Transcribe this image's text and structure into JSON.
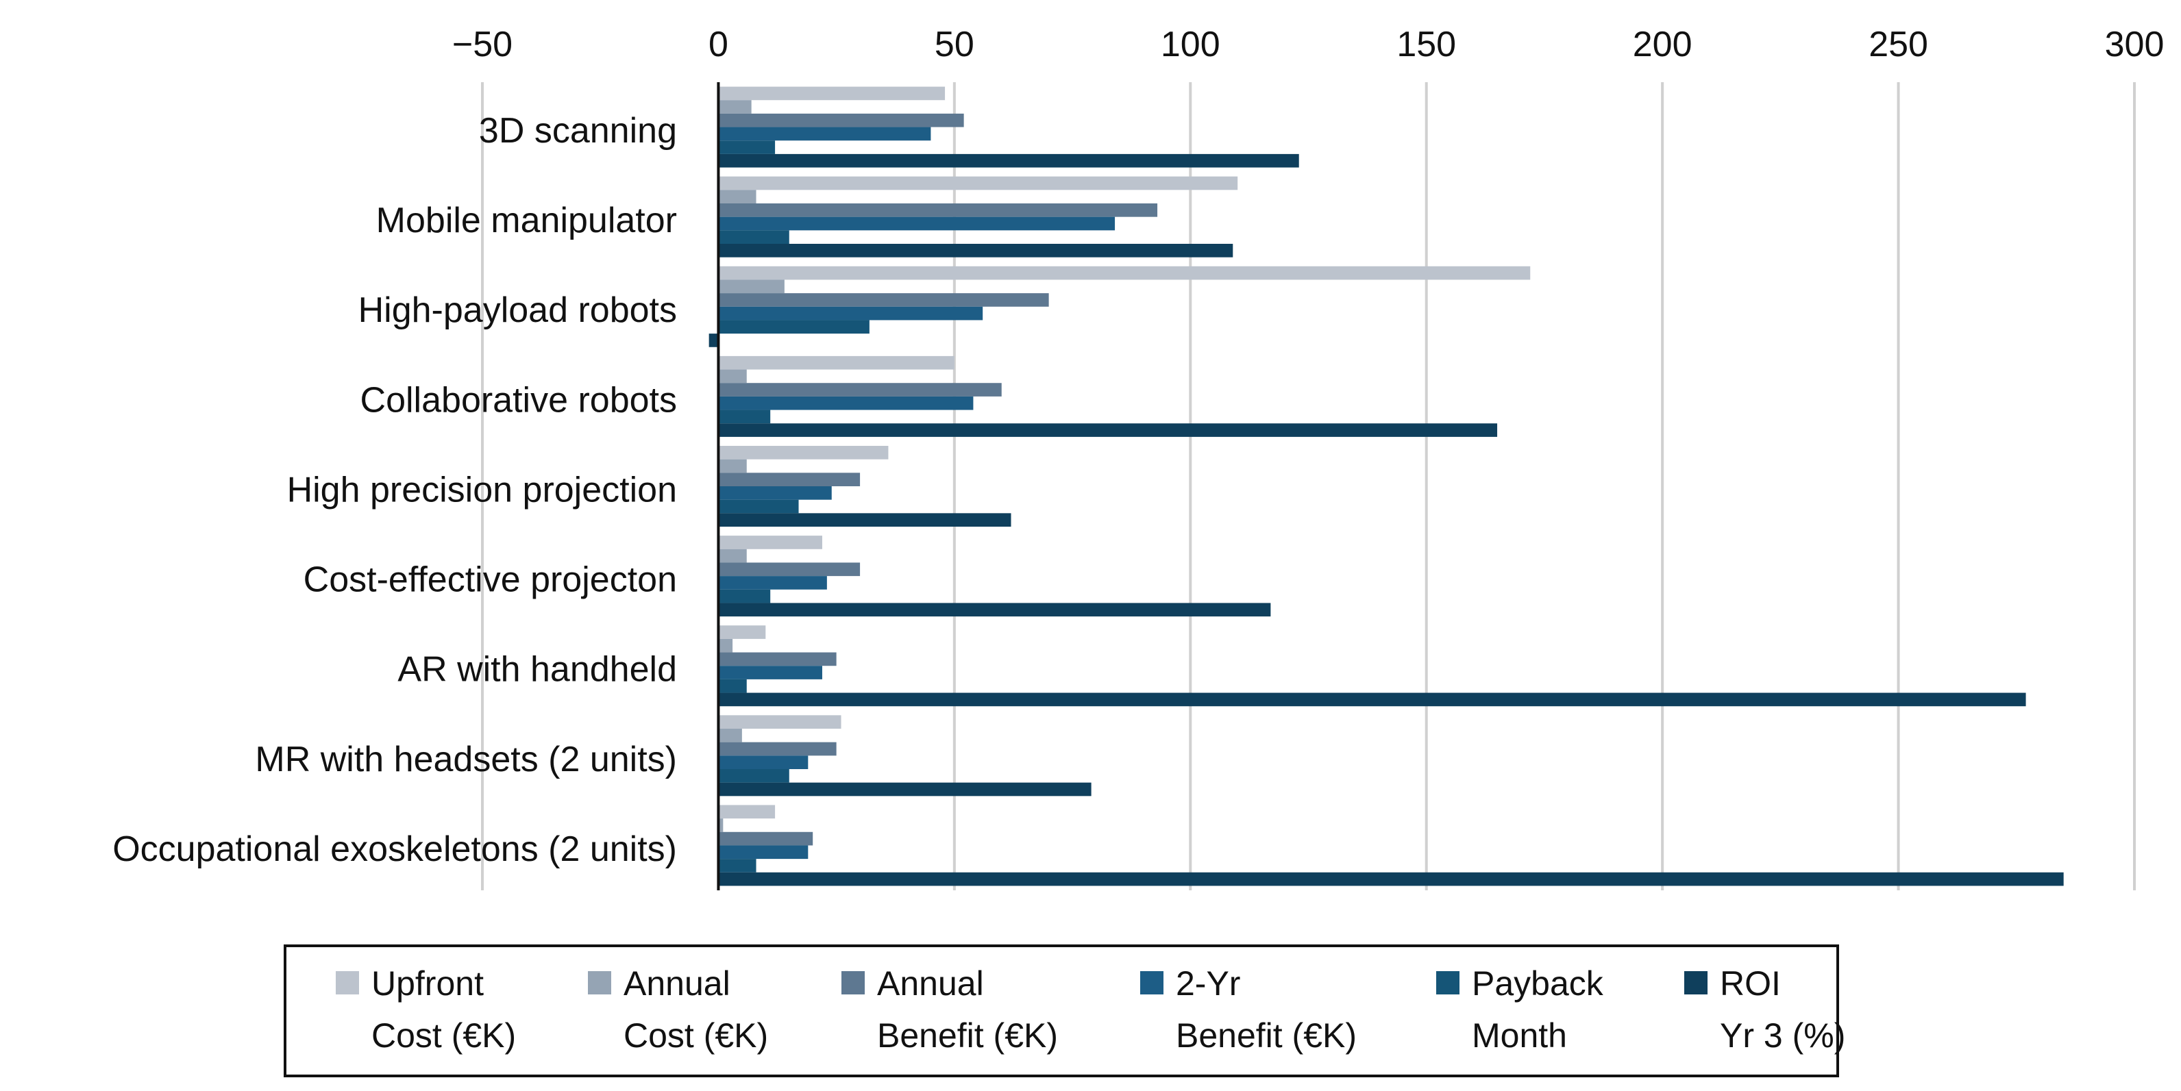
{
  "chart_data": {
    "type": "bar",
    "orientation": "horizontal",
    "title": "",
    "xlabel": "",
    "ylabel": "",
    "xlim": [
      -50,
      300
    ],
    "xticks": [
      -50,
      0,
      50,
      100,
      150,
      200,
      250,
      300
    ],
    "xtick_labels": [
      "−50",
      "0",
      "50",
      "100",
      "150",
      "200",
      "250",
      "300"
    ],
    "xaxis_position": "top",
    "grid": "vertical",
    "legend_position": "bottom",
    "categories": [
      "3D scanning",
      "Mobile manipulator",
      "High-payload robots",
      "Collaborative robots",
      "High precision projection",
      "Cost-effective projecton",
      "AR with handheld",
      "MR with headsets (2 units)",
      "Occupational exoskeletons (2 units)"
    ],
    "series": [
      {
        "name": "Upfront Cost (€K)",
        "legend_lines": [
          "Upfront",
          "Cost (€K)"
        ],
        "color": "#bcc3cd",
        "values": [
          48,
          110,
          172,
          50,
          36,
          22,
          10,
          26,
          12
        ]
      },
      {
        "name": "Annual Cost (€K)",
        "legend_lines": [
          "Annual",
          "Cost (€K)"
        ],
        "color": "#95a4b4",
        "values": [
          7,
          8,
          14,
          6,
          6,
          6,
          3,
          5,
          1
        ]
      },
      {
        "name": "Annual Benefit (€K)",
        "legend_lines": [
          "Annual",
          "Benefit (€K)"
        ],
        "color": "#5e7891",
        "values": [
          52,
          93,
          70,
          60,
          30,
          30,
          25,
          25,
          20
        ]
      },
      {
        "name": "2-Yr Benefit (€K)",
        "legend_lines": [
          "2-Yr",
          "Benefit (€K)"
        ],
        "color": "#1d5d86",
        "values": [
          45,
          84,
          56,
          54,
          24,
          23,
          22,
          19,
          19
        ]
      },
      {
        "name": "Payback Month",
        "legend_lines": [
          "Payback",
          "Month"
        ],
        "color": "#155577",
        "values": [
          12,
          15,
          32,
          11,
          17,
          11,
          6,
          15,
          8
        ]
      },
      {
        "name": "ROI Yr 3 (%)",
        "legend_lines": [
          "ROI",
          "Yr 3 (%)"
        ],
        "color": "#0f3f5c",
        "values": [
          123,
          109,
          -2,
          165,
          62,
          117,
          277,
          79,
          285
        ]
      }
    ]
  }
}
